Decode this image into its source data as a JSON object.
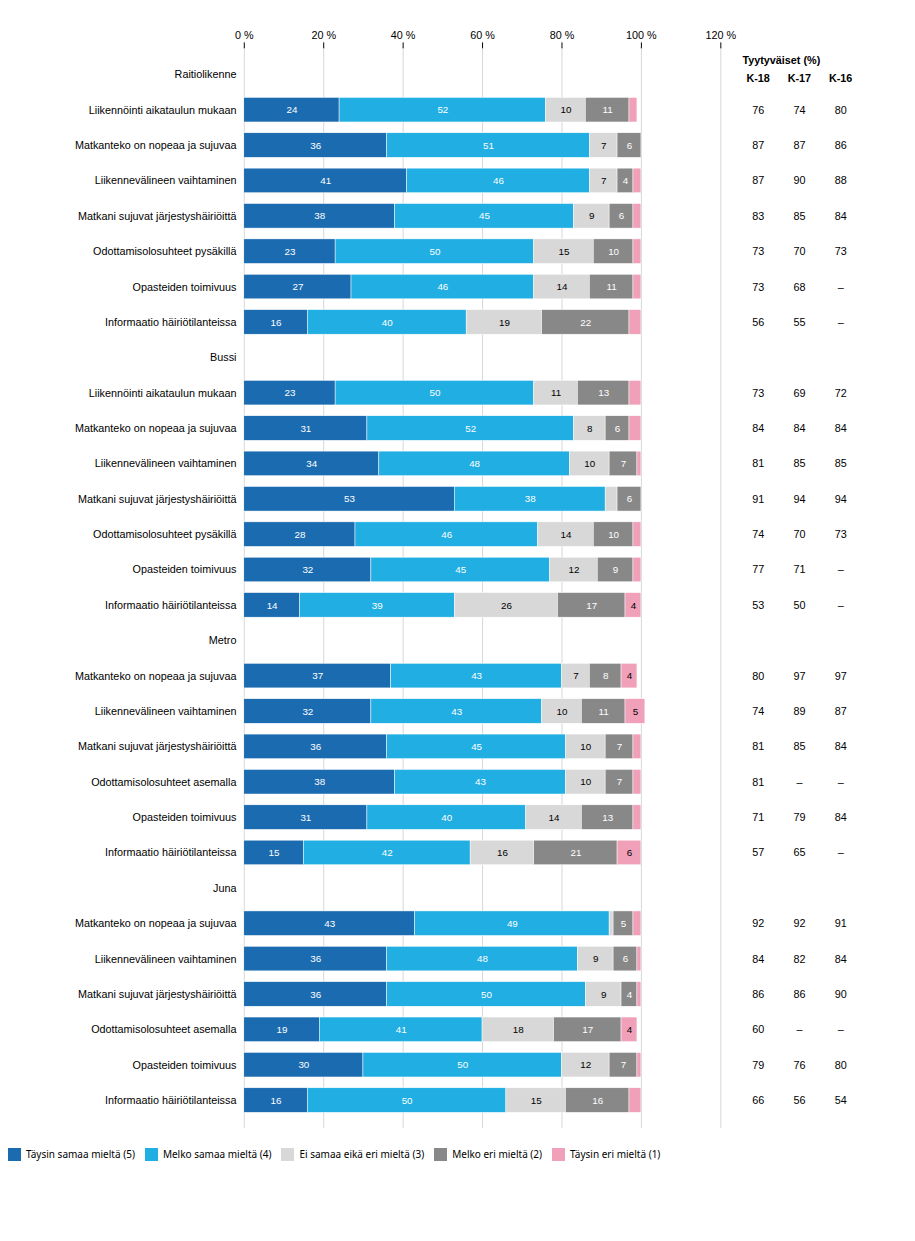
{
  "chart_data": {
    "type": "bar",
    "orientation": "horizontal",
    "stacked": true,
    "data_labels": true,
    "grid": true,
    "legend": "bottom",
    "xlim": [
      0,
      120
    ],
    "xticks": [
      {
        "value": 0,
        "label": "0 %"
      },
      {
        "value": 20,
        "label": "20 %"
      },
      {
        "value": 40,
        "label": "40 %"
      },
      {
        "value": 60,
        "label": "60 %"
      },
      {
        "value": 80,
        "label": "80 %"
      },
      {
        "value": 100,
        "label": "100 %"
      },
      {
        "value": 120,
        "label": "120 %"
      }
    ],
    "categories": [
      "Raitiolikenne",
      "Liikennöinti aikataulun mukaan",
      "Matkanteko on nopeaa ja sujuvaa",
      "Liikennevälineen vaihtaminen",
      "Matkani sujuvat järjestyshäiriöittä",
      "Odottamisolosuhteet pysäkillä",
      "Opasteiden toimivuus",
      "Informaatio häiriötilanteissa",
      "Bussi",
      "Liikennöinti aikataulun mukaan",
      "Matkanteko on nopeaa ja sujuvaa",
      "Liikennevälineen vaihtaminen",
      "Matkani sujuvat järjestyshäiriöittä",
      "Odottamisolosuhteet pysäkillä",
      "Opasteiden toimivuus",
      "Informaatio häiriötilanteissa",
      "Metro",
      "Matkanteko on nopeaa ja sujuvaa",
      "Liikennevälineen vaihtaminen",
      "Matkani sujuvat järjestyshäiriöittä",
      "Odottamisolosuhteet asemalla",
      "Opasteiden toimivuus",
      "Informaatio häiriötilanteissa",
      "Juna",
      "Matkanteko on nopeaa ja sujuvaa",
      "Liikennevälineen vaihtaminen",
      "Matkani sujuvat järjestyshäiriöittä",
      "Odottamisolosuhteet asemalla",
      "Opasteiden toimivuus",
      "Informaatio häiriötilanteissa"
    ],
    "series": [
      {
        "name": "Täysin samaa mieltä (5)",
        "color": "#1b6bb0",
        "values": [
          null,
          24,
          36,
          41,
          38,
          23,
          27,
          16,
          null,
          23,
          31,
          34,
          53,
          28,
          32,
          14,
          null,
          37,
          32,
          36,
          38,
          31,
          15,
          null,
          43,
          36,
          36,
          19,
          30,
          16
        ],
        "value_labels": [
          null,
          "24",
          "36",
          "41",
          "38",
          "23",
          "27",
          "16",
          null,
          "23",
          "31",
          "34",
          "53",
          "28",
          "32",
          "14",
          null,
          "37",
          "32",
          "36",
          "38",
          "31",
          "15",
          null,
          "43",
          "36",
          "36",
          "19",
          "30",
          "16"
        ]
      },
      {
        "name": "Melko samaa mieltä (4)",
        "color": "#20aee3",
        "values": [
          null,
          52,
          51,
          46,
          45,
          50,
          46,
          40,
          null,
          50,
          52,
          48,
          38,
          46,
          45,
          39,
          null,
          43,
          43,
          45,
          43,
          40,
          42,
          null,
          49,
          48,
          50,
          41,
          50,
          50
        ],
        "value_labels": [
          null,
          "52",
          "51",
          "46",
          "45",
          "50",
          "46",
          "40",
          null,
          "50",
          "52",
          "48",
          "38",
          "46",
          "45",
          "39",
          null,
          "43",
          "43",
          "45",
          "43",
          "40",
          "42",
          null,
          "49",
          "48",
          "50",
          "41",
          "50",
          "50"
        ]
      },
      {
        "name": "Ei samaa eikä eri mieltä (3)",
        "color": "#d8d8d8",
        "values": [
          null,
          10,
          7,
          7,
          9,
          15,
          14,
          19,
          null,
          11,
          8,
          10,
          3,
          14,
          12,
          26,
          null,
          7,
          10,
          10,
          10,
          14,
          16,
          null,
          1,
          9,
          9,
          18,
          12,
          15
        ],
        "value_labels": [
          null,
          "10",
          "7",
          "7",
          "9",
          "15",
          "14",
          "19",
          null,
          "11",
          "8",
          "10",
          null,
          "14",
          "12",
          "26",
          null,
          "7",
          "10",
          "10",
          "10",
          "14",
          "16",
          null,
          null,
          "9",
          "9",
          "18",
          "12",
          "15"
        ]
      },
      {
        "name": "Melko eri mieltä (2)",
        "color": "#888888",
        "values": [
          null,
          11,
          6,
          4,
          6,
          10,
          11,
          22,
          null,
          13,
          6,
          7,
          6,
          10,
          9,
          17,
          null,
          8,
          11,
          7,
          7,
          13,
          21,
          null,
          5,
          6,
          4,
          17,
          7,
          16
        ],
        "value_labels": [
          null,
          "11",
          "6",
          "4",
          "6",
          "10",
          "11",
          "22",
          null,
          "13",
          "6",
          "7",
          "6",
          "10",
          "9",
          "17",
          null,
          "8",
          "11",
          "7",
          "7",
          "13",
          "21",
          null,
          "5",
          "6",
          "4",
          "17",
          "7",
          "16"
        ]
      },
      {
        "name": "Täysin eri mieltä (1)",
        "color": "#f0a0b8",
        "values": [
          null,
          2,
          0,
          2,
          2,
          2,
          2,
          3,
          null,
          3,
          3,
          1,
          0,
          2,
          2,
          4,
          null,
          4,
          5,
          2,
          2,
          2,
          6,
          null,
          2,
          1,
          1,
          4,
          1,
          3
        ],
        "value_labels": [
          null,
          null,
          null,
          null,
          null,
          null,
          null,
          null,
          null,
          null,
          null,
          null,
          null,
          null,
          null,
          "4",
          null,
          "4",
          "5",
          null,
          null,
          null,
          "6",
          null,
          null,
          null,
          null,
          "4",
          null,
          null
        ]
      }
    ],
    "side_table": {
      "title": "Tyytyväiset (%)",
      "columns": [
        {
          "name": "K-18",
          "labels": [
            null,
            "76",
            "87",
            "87",
            "83",
            "73",
            "73",
            "56",
            null,
            "73",
            "84",
            "81",
            "91",
            "74",
            "77",
            "53",
            null,
            "80",
            "74",
            "81",
            "81",
            "71",
            "57",
            null,
            "92",
            "84",
            "86",
            "60",
            "79",
            "66"
          ]
        },
        {
          "name": "K-17",
          "labels": [
            null,
            "74",
            "87",
            "90",
            "85",
            "70",
            "68",
            "55",
            null,
            "69",
            "84",
            "85",
            "94",
            "70",
            "71",
            "50",
            null,
            "97",
            "89",
            "85",
            "–",
            "79",
            "65",
            null,
            "92",
            "82",
            "86",
            "–",
            "76",
            "56"
          ]
        },
        {
          "name": "K-16",
          "labels": [
            null,
            "80",
            "86",
            "88",
            "84",
            "73",
            "–",
            "–",
            null,
            "72",
            "84",
            "85",
            "94",
            "73",
            "–",
            "–",
            null,
            "97",
            "87",
            "84",
            "–",
            "84",
            "–",
            null,
            "91",
            "84",
            "90",
            "–",
            "80",
            "54"
          ]
        }
      ]
    }
  }
}
